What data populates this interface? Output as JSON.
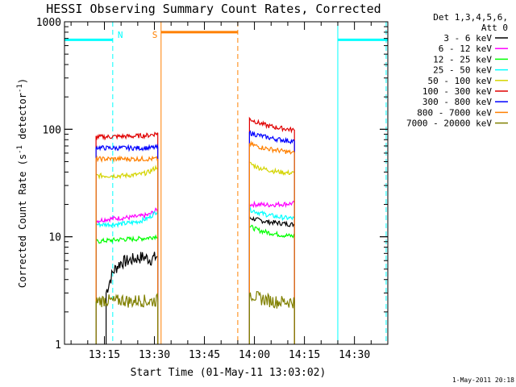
{
  "chart_data": {
    "type": "line",
    "title": "HESSI Observing Summary Count Rates, Corrected",
    "xlabel": "Start Time (01-May-11 13:03:02)",
    "ylabel": "Corrected Count Rate (s⁻¹ detector⁻¹)",
    "ylabel_parts": {
      "main": "Corrected Count Rate (s",
      "sup1": "-1",
      "mid": " detector",
      "sup2": "-1",
      "end": ")"
    },
    "xlim": [
      "13:03:02",
      "14:40:00"
    ],
    "ylim": [
      1,
      1000
    ],
    "yscale": "log",
    "x_ticks": [
      "13:15",
      "13:30",
      "13:45",
      "14:00",
      "14:15",
      "14:30"
    ],
    "y_ticks": [
      "1",
      "10",
      "100",
      "1000"
    ],
    "legend_header": [
      "Det 1,3,4,5,6,",
      "Att 0"
    ],
    "legend_position": "right-outside",
    "timestamp": "1-May-2011 20:18",
    "series": [
      {
        "name": "3 - 6 keV",
        "color": "#000000",
        "segments": [
          {
            "start": "13:15:30",
            "end": "13:31:00",
            "values": [
              3.0,
              4.8,
              5.8,
              6.0,
              6.3,
              6.5,
              6.2,
              6.6
            ]
          },
          {
            "start": "13:58:30",
            "end": "14:12:00",
            "values": [
              15.0,
              14.3,
              13.8,
              13.5,
              13.2,
              13.0
            ]
          }
        ]
      },
      {
        "name": "6 - 12 keV",
        "color": "#ff00ff",
        "segments": [
          {
            "start": "13:12:30",
            "end": "13:31:00",
            "values": [
              14.0,
              14.5,
              14.8,
              15.0,
              15.2,
              15.5,
              16.0,
              18.0
            ]
          },
          {
            "start": "13:58:30",
            "end": "14:12:00",
            "values": [
              20.0,
              20.0,
              19.8,
              20.0,
              20.2,
              20.5
            ]
          }
        ]
      },
      {
        "name": "12 - 25 keV",
        "color": "#00ff00",
        "segments": [
          {
            "start": "13:12:30",
            "end": "13:31:00",
            "values": [
              9.0,
              9.2,
              9.3,
              9.5,
              9.5,
              9.6,
              9.8,
              10.2
            ]
          },
          {
            "start": "13:58:30",
            "end": "14:12:00",
            "values": [
              12.5,
              11.5,
              11.0,
              10.6,
              10.3,
              10.1
            ]
          }
        ]
      },
      {
        "name": "25 - 50 keV",
        "color": "#00ffff",
        "segments": [
          {
            "start": "13:12:30",
            "end": "13:31:00",
            "values": [
              13.0,
              13.0,
              13.1,
              13.2,
              13.5,
              14.0,
              15.0,
              17.5
            ]
          },
          {
            "start": "13:58:30",
            "end": "14:12:00",
            "values": [
              18.0,
              16.8,
              16.0,
              15.4,
              15.0,
              14.8
            ]
          }
        ]
      },
      {
        "name": "50 - 100 keV",
        "color": "#d4d400",
        "segments": [
          {
            "start": "13:12:30",
            "end": "13:31:00",
            "values": [
              37.0,
              37.0,
              37.0,
              37.0,
              37.5,
              38.0,
              40.0,
              45.0
            ]
          },
          {
            "start": "13:58:30",
            "end": "14:12:00",
            "values": [
              48.0,
              44.0,
              42.0,
              40.5,
              39.5,
              39.0
            ]
          }
        ]
      },
      {
        "name": "100 - 300 keV",
        "color": "#e00000",
        "segments": [
          {
            "start": "13:12:30",
            "end": "13:31:00",
            "values": [
              85.0,
              85.0,
              85.5,
              86.0,
              86.0,
              87.0,
              88.0,
              92.0
            ]
          },
          {
            "start": "13:58:30",
            "end": "14:12:00",
            "values": [
              125.0,
              115.0,
              108.0,
              104.0,
              101.0,
              98.0
            ]
          }
        ]
      },
      {
        "name": "300 - 800 keV",
        "color": "#0000ff",
        "segments": [
          {
            "start": "13:12:30",
            "end": "13:31:00",
            "values": [
              68.0,
              67.0,
              67.0,
              67.0,
              67.0,
              67.0,
              67.0,
              68.0
            ]
          },
          {
            "start": "13:58:30",
            "end": "14:12:00",
            "values": [
              93.0,
              88.0,
              84.0,
              81.0,
              79.0,
              77.0
            ]
          }
        ]
      },
      {
        "name": "800 - 7000 keV",
        "color": "#ff8000",
        "segments": [
          {
            "start": "13:12:30",
            "end": "13:31:00",
            "values": [
              53.0,
              53.0,
              53.0,
              53.0,
              53.0,
              53.0,
              53.0,
              53.0
            ]
          },
          {
            "start": "13:58:30",
            "end": "14:12:00",
            "values": [
              73.0,
              69.0,
              66.0,
              64.0,
              62.0,
              60.0
            ]
          }
        ]
      },
      {
        "name": "7000 - 20000 keV",
        "color": "#808000",
        "segments": [
          {
            "start": "13:12:30",
            "end": "13:31:00",
            "values": [
              2.5,
              2.6,
              2.5,
              2.6,
              2.5,
              2.6,
              2.5,
              2.6
            ]
          },
          {
            "start": "13:58:30",
            "end": "14:12:00",
            "values": [
              3.0,
              2.7,
              2.6,
              2.5,
              2.5,
              2.5
            ]
          }
        ]
      }
    ],
    "annotations": [
      {
        "label": "N",
        "kind": "night",
        "color": "#00ffff",
        "intervals": [
          [
            "13:03:02",
            "13:17:30"
          ],
          [
            "14:25:00",
            "14:40:00"
          ]
        ],
        "bar_level": 680,
        "line_times": [
          "13:03:02",
          "13:17:30",
          "14:25:00",
          "14:39:30"
        ],
        "dashed_times": [
          "13:17:30",
          "14:39:30"
        ],
        "label_time": "13:17:30"
      },
      {
        "label": "S",
        "kind": "saa",
        "color": "#ff8000",
        "intervals": [
          [
            "13:32:00",
            "13:55:00"
          ]
        ],
        "bar_level": 800,
        "line_times": [
          "13:32:00",
          "13:55:00"
        ],
        "dashed_times": [
          "13:55:00"
        ],
        "label_time": "13:32:00"
      }
    ]
  }
}
